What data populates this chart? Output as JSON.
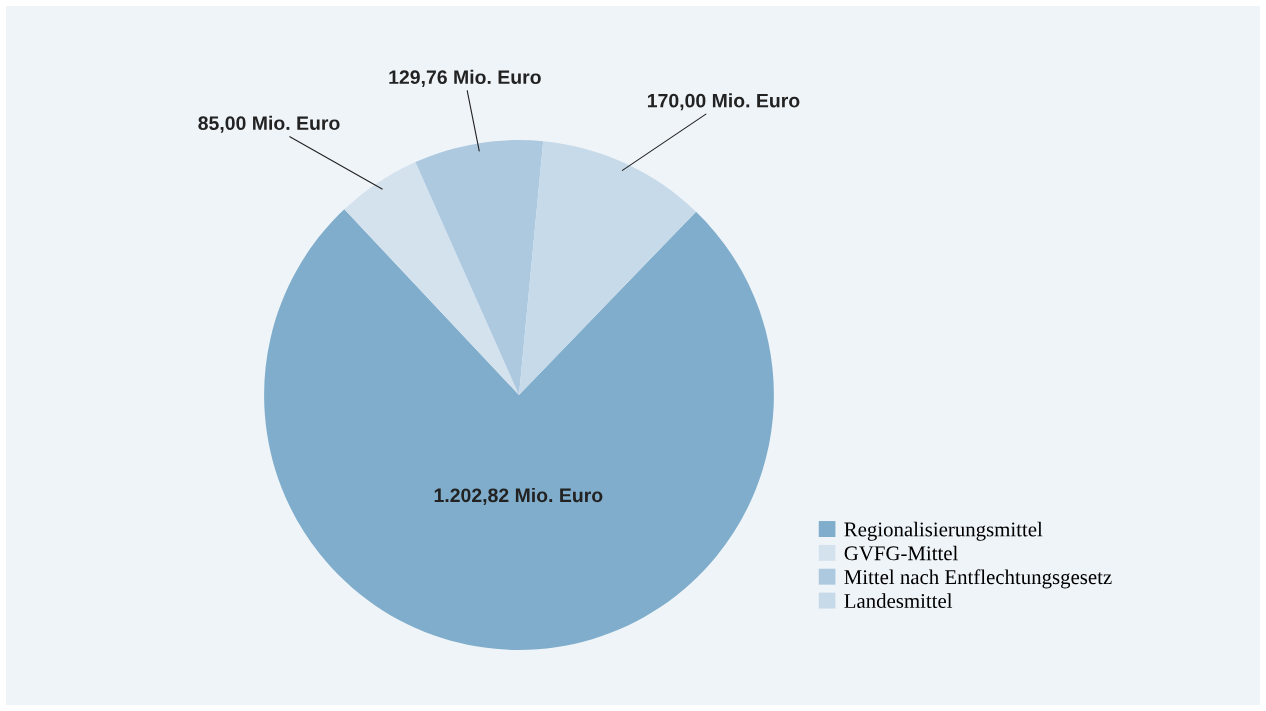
{
  "chart_data": {
    "type": "pie",
    "categories": [
      "Regionalisierungsmittel",
      "GVFG-Mittel",
      "Mittel nach Entflechtungsgesetz",
      "Landesmittel"
    ],
    "values": [
      1202.82,
      85.0,
      129.76,
      170.0
    ],
    "value_labels": [
      "1.202,82 Mio. Euro",
      "85,00 Mio. Euro",
      "129,76 Mio. Euro",
      "170,00 Mio. Euro"
    ],
    "colors": [
      "#7fadcb",
      "#d4e2ee",
      "#adc9df",
      "#c6dae9"
    ],
    "legend": "bottom right"
  }
}
